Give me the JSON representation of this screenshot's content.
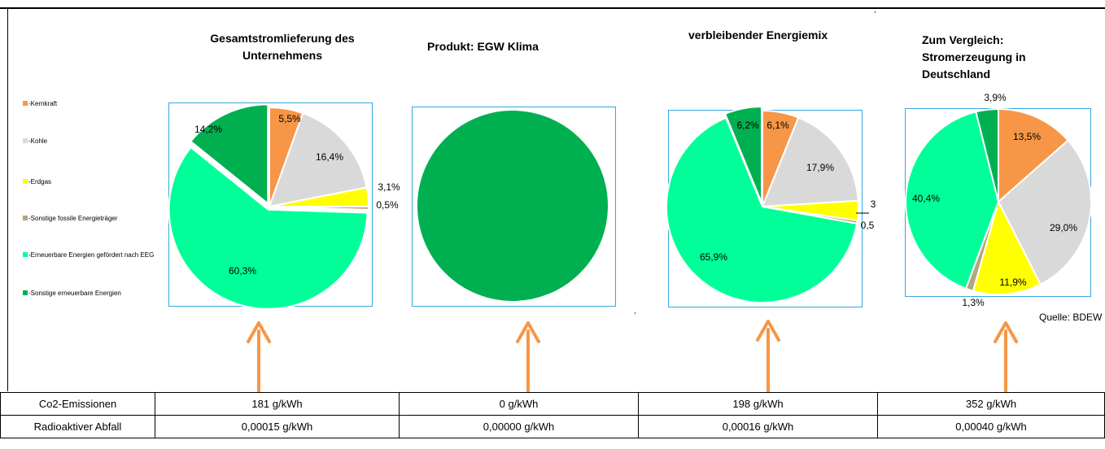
{
  "titles": {
    "company": "Gesamtstromlieferung des Unternehmens",
    "product": "Produkt: EGW Klima",
    "residual": "verbleibender Energiemix",
    "germany": "Zum Vergleich: Stromerzeugung in Deutschland"
  },
  "legend": [
    {
      "label": "-Kernkraft",
      "color": "#f79646"
    },
    {
      "label": "-Kohle",
      "color": "#d9d9d9"
    },
    {
      "label": "-Erdgas",
      "color": "#ffff00"
    },
    {
      "label": "-Sonstige fossile Energieträger",
      "color": "#b5a67a"
    },
    {
      "label": "-Erneuerbare Energien gefördert nach EEG",
      "color": "#00ff99"
    },
    {
      "label": "-Sonstige erneuerbare Energien",
      "color": "#00b050"
    }
  ],
  "source": "Quelle: BDEW",
  "chart_data": [
    {
      "type": "pie",
      "title": "Gesamtstromlieferung des Unternehmens",
      "categories": [
        "Kernkraft",
        "Kohle",
        "Erdgas",
        "Sonstige fossile Energieträger",
        "Erneuerbare Energien gefördert nach EEG",
        "Sonstige erneuerbare Energien"
      ],
      "values": [
        5.5,
        16.4,
        3.1,
        0.5,
        60.3,
        14.2
      ],
      "labels": [
        "5,5%",
        "16,4%",
        "3,1%",
        "0,5%",
        "60,3%",
        "14,2%"
      ]
    },
    {
      "type": "pie",
      "title": "Produkt: EGW Klima",
      "categories": [
        "Sonstige erneuerbare Energien"
      ],
      "values": [
        100
      ],
      "labels": []
    },
    {
      "type": "pie",
      "title": "verbleibender Energiemix",
      "categories": [
        "Kernkraft",
        "Kohle",
        "Erdgas",
        "Sonstige fossile Energieträger",
        "Erneuerbare Energien gefördert nach EEG",
        "Sonstige erneuerbare Energien"
      ],
      "values": [
        6.1,
        17.9,
        3.3,
        0.5,
        65.9,
        6.2
      ],
      "labels": [
        "6,1%",
        "17,9%",
        "3",
        "0,5",
        "65,9%",
        "6,2%"
      ]
    },
    {
      "type": "pie",
      "title": "Zum Vergleich: Stromerzeugung in Deutschland",
      "categories": [
        "Kernkraft",
        "Kohle",
        "Erdgas",
        "Sonstige fossile Energieträger",
        "Erneuerbare Energien gefördert nach EEG",
        "Sonstige erneuerbare Energien"
      ],
      "values": [
        13.5,
        29.0,
        11.9,
        1.3,
        40.4,
        3.9
      ],
      "labels": [
        "13,5%",
        "29,0%",
        "11,9%",
        "1,3%",
        "40,4%",
        "3,9%"
      ]
    }
  ],
  "table": {
    "rows": [
      {
        "label": "Co2-Emissionen",
        "values": [
          "181 g/kWh",
          "0 g/kWh",
          "198 g/kWh",
          "352 g/kWh"
        ]
      },
      {
        "label": "Radioaktiver Abfall",
        "values": [
          "0,00015 g/kWh",
          "0,00000 g/kWh",
          "0,00016 g/kWh",
          "0,00040 g/kWh"
        ]
      }
    ]
  },
  "colors": {
    "arrow": "#f79646",
    "box_border": "#35a9e0"
  }
}
